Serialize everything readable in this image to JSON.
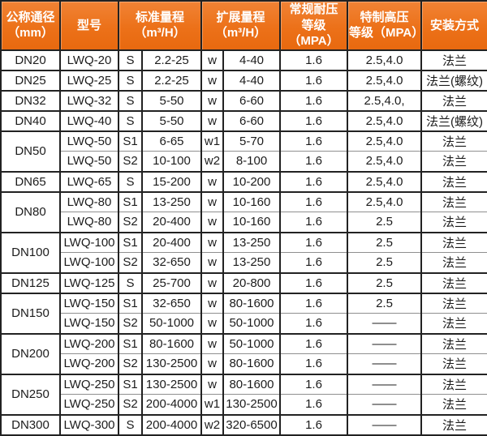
{
  "colors": {
    "header_bg": "#ec7119",
    "header_text": "#ffffff",
    "border": "#222222",
    "body_bg": "#ffffff",
    "body_text": "#1c1c1c"
  },
  "table": {
    "header": {
      "diameter": "公称通径\n（mm）",
      "model": "型号",
      "standard_range": "标准量程\n（m³/H）",
      "extended_range": "扩展量程\n（m³/H）",
      "normal_pressure": "常规耐压\n等级（MPA）",
      "high_pressure": "特制高压\n等级（MPA）",
      "install": "安装方式"
    },
    "groups": [
      {
        "dn": "DN20",
        "rows": [
          {
            "model": "LWQ-20",
            "s_label": "S",
            "std_range": "2.2-25",
            "w_label": "w",
            "ext_range": "4-40",
            "normal_mpa": "1.6",
            "high_mpa": "2.5,4.0",
            "install": "法兰"
          }
        ]
      },
      {
        "dn": "DN25",
        "rows": [
          {
            "model": "LWQ-25",
            "s_label": "S",
            "std_range": "2.2-25",
            "w_label": "w",
            "ext_range": "4-40",
            "normal_mpa": "1.6",
            "high_mpa": "2.5,4.0",
            "install": "法兰(螺纹)"
          }
        ]
      },
      {
        "dn": "DN32",
        "rows": [
          {
            "model": "LWQ-32",
            "s_label": "S",
            "std_range": "5-50",
            "w_label": "w",
            "ext_range": "6-60",
            "normal_mpa": "1.6",
            "high_mpa": "2.5,4.0,",
            "install": "法兰"
          }
        ]
      },
      {
        "dn": "DN40",
        "rows": [
          {
            "model": "LWQ-40",
            "s_label": "S",
            "std_range": "5-50",
            "w_label": "w",
            "ext_range": "6-60",
            "normal_mpa": "1.6",
            "high_mpa": "2.5,4.0",
            "install": "法兰(螺纹)"
          }
        ]
      },
      {
        "dn": "DN50",
        "rows": [
          {
            "model": "LWQ-50",
            "s_label": "S1",
            "std_range": "6-65",
            "w_label": "w1",
            "ext_range": "5-70",
            "normal_mpa": "1.6",
            "high_mpa": "2.5,4.0",
            "install": "法兰"
          },
          {
            "model": "LWQ-50",
            "s_label": "S2",
            "std_range": "10-100",
            "w_label": "w2",
            "ext_range": "8-100",
            "normal_mpa": "1.6",
            "high_mpa": "2.5,4.0",
            "install": "法兰"
          }
        ]
      },
      {
        "dn": "DN65",
        "rows": [
          {
            "model": "LWQ-65",
            "s_label": "S",
            "std_range": "15-200",
            "w_label": "w",
            "ext_range": "10-200",
            "normal_mpa": "1.6",
            "high_mpa": "2.5,4.0",
            "install": "法兰"
          }
        ]
      },
      {
        "dn": "DN80",
        "rows": [
          {
            "model": "LWQ-80",
            "s_label": "S1",
            "std_range": "13-250",
            "w_label": "w",
            "ext_range": "10-160",
            "normal_mpa": "1.6",
            "high_mpa": "2.5,4.0",
            "install": "法兰"
          },
          {
            "model": "LWQ-80",
            "s_label": "S2",
            "std_range": "20-400",
            "w_label": "w",
            "ext_range": "10-160",
            "normal_mpa": "1.6",
            "high_mpa": "2.5",
            "install": "法兰"
          }
        ]
      },
      {
        "dn": "DN100",
        "rows": [
          {
            "model": "LWQ-100",
            "s_label": "S1",
            "std_range": "20-400",
            "w_label": "w",
            "ext_range": "13-250",
            "normal_mpa": "1.6",
            "high_mpa": "2.5",
            "install": "法兰"
          },
          {
            "model": "LWQ-100",
            "s_label": "S2",
            "std_range": "32-650",
            "w_label": "w",
            "ext_range": "13-250",
            "normal_mpa": "1.6",
            "high_mpa": "2.5",
            "install": "法兰"
          }
        ]
      },
      {
        "dn": "DN125",
        "rows": [
          {
            "model": "LWQ-125",
            "s_label": "S",
            "std_range": "25-700",
            "w_label": "w",
            "ext_range": "20-800",
            "normal_mpa": "1.6",
            "high_mpa": "2.5",
            "install": "法兰"
          }
        ]
      },
      {
        "dn": "DN150",
        "rows": [
          {
            "model": "LWQ-150",
            "s_label": "S1",
            "std_range": "32-650",
            "w_label": "w",
            "ext_range": "80-1600",
            "normal_mpa": "1.6",
            "high_mpa": "2.5",
            "install": "法兰"
          },
          {
            "model": "LWQ-150",
            "s_label": "S2",
            "std_range": "50-1000",
            "w_label": "w",
            "ext_range": "50-1000",
            "normal_mpa": "1.6",
            "high_mpa": "——",
            "install": "法兰"
          }
        ]
      },
      {
        "dn": "DN200",
        "rows": [
          {
            "model": "LWQ-200",
            "s_label": "S1",
            "std_range": "80-1600",
            "w_label": "w",
            "ext_range": "50-1000",
            "normal_mpa": "1.6",
            "high_mpa": "——",
            "install": "法兰"
          },
          {
            "model": "LWQ-200",
            "s_label": "S2",
            "std_range": "130-2500",
            "w_label": "w",
            "ext_range": "80-1600",
            "normal_mpa": "1.6",
            "high_mpa": "——",
            "install": "法兰"
          }
        ]
      },
      {
        "dn": "DN250",
        "rows": [
          {
            "model": "LWQ-250",
            "s_label": "S1",
            "std_range": "130-2500",
            "w_label": "w",
            "ext_range": "80-1600",
            "normal_mpa": "1.6",
            "high_mpa": "——",
            "install": "法兰"
          },
          {
            "model": "LWQ-250",
            "s_label": "S2",
            "std_range": "200-4000",
            "w_label": "w1",
            "ext_range": "130-2500",
            "normal_mpa": "1.6",
            "high_mpa": "——",
            "install": "法兰"
          }
        ]
      },
      {
        "dn": "DN300",
        "rows": [
          {
            "model": "LWQ-300",
            "s_label": "S",
            "std_range": "200-4000",
            "w_label": "w2",
            "ext_range": "320-6500",
            "normal_mpa": "1.6",
            "high_mpa": "——",
            "install": "法兰"
          }
        ]
      }
    ]
  }
}
